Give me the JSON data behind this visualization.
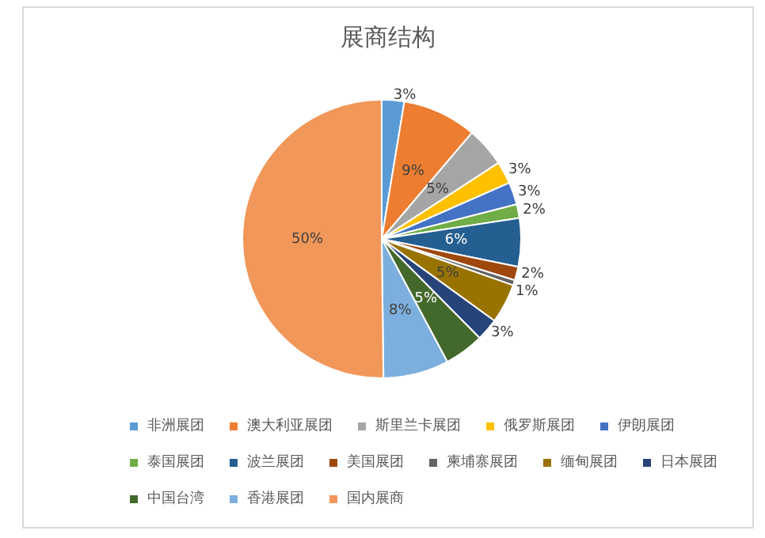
{
  "chart_data": {
    "type": "pie",
    "title": "展商结构",
    "categories": [
      "非洲展团",
      "澳大利亚展团",
      "斯里兰卡展团",
      "俄罗斯展团",
      "伊朗展团",
      "泰国展团",
      "波兰展团",
      "美国展团",
      "柬埔寨展团",
      "缅甸展团",
      "日本展团",
      "中国台湾",
      "香港展团",
      "国内展商"
    ],
    "values": [
      2.6,
      8.6,
      4.6,
      2.6,
      2.6,
      1.6,
      5.6,
      1.6,
      0.6,
      4.6,
      2.6,
      4.6,
      7.6,
      50.2
    ],
    "value_labels": [
      "3%",
      "9%",
      "5%",
      "3%",
      "3%",
      "2%",
      "6%",
      "2%",
      "1%",
      "5%",
      "3%",
      "5%",
      "8%",
      "50%"
    ],
    "colors": [
      "#5b9bd5",
      "#ed7d31",
      "#a5a5a5",
      "#ffc000",
      "#4472c4",
      "#70ad47",
      "#255e91",
      "#9e480e",
      "#636363",
      "#997300",
      "#264478",
      "#43682b",
      "#7cafdd",
      "#f1975a"
    ],
    "legend": "bottom"
  }
}
